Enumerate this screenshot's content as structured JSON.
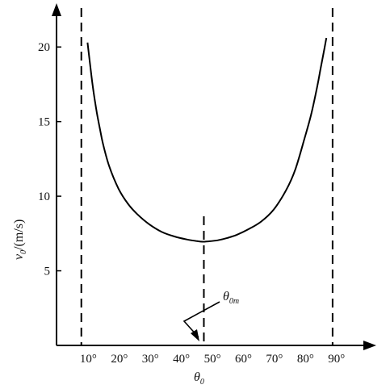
{
  "chart_data": {
    "type": "line",
    "xlabel": {
      "symbol": "θ",
      "subscript": "0"
    },
    "ylabel": {
      "symbol": "v",
      "subscript": "0",
      "unit": "/(m/s)"
    },
    "x_ticks": [
      "10°",
      "20°",
      "30°",
      "40°",
      "50°",
      "60°",
      "70°",
      "80°",
      "90°"
    ],
    "x_tick_values": [
      10,
      20,
      30,
      40,
      50,
      60,
      70,
      80,
      90
    ],
    "y_ticks": [
      "5",
      "10",
      "15",
      "20"
    ],
    "y_tick_values": [
      5,
      10,
      15,
      20
    ],
    "xlim": [
      0,
      101
    ],
    "ylim": [
      0,
      22.5
    ],
    "grid": false,
    "series": [
      {
        "x": [
          10,
          11,
          12,
          13,
          14,
          15,
          17,
          20,
          23,
          26,
          30,
          34,
          38,
          42,
          45,
          47,
          49,
          52,
          55,
          58,
          62,
          66,
          70,
          74,
          77,
          80,
          82,
          84,
          85,
          86,
          87
        ],
        "y": [
          20.3,
          18.5,
          16.9,
          15.6,
          14.5,
          13.5,
          12.0,
          10.5,
          9.5,
          8.8,
          8.1,
          7.6,
          7.3,
          7.1,
          7.0,
          6.95,
          6.97,
          7.05,
          7.2,
          7.4,
          7.8,
          8.3,
          9.1,
          10.4,
          11.8,
          13.9,
          15.4,
          17.3,
          18.4,
          19.5,
          20.6
        ]
      }
    ],
    "reference_lines": [
      {
        "x": 8
      },
      {
        "x": 47.5
      },
      {
        "x": 89
      }
    ],
    "annotation": {
      "symbol": "θ",
      "subscript": "0m",
      "points_to_x": 47.5
    }
  }
}
